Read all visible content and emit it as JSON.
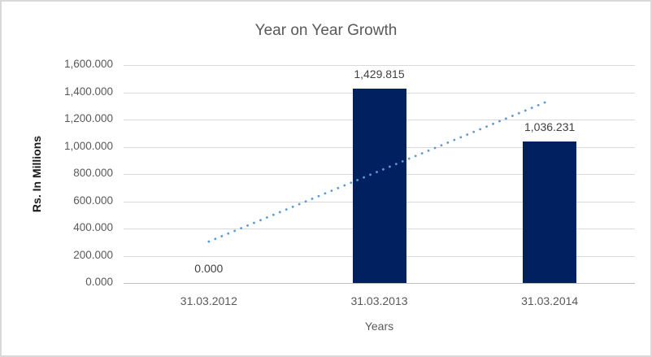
{
  "chart_data": {
    "type": "bar",
    "title": "Year on Year Growth",
    "xlabel": "Years",
    "ylabel": "Rs. In Millions",
    "categories": [
      "31.03.2012",
      "31.03.2013",
      "31.03.2014"
    ],
    "values": [
      0.0,
      1429.815,
      1036.231
    ],
    "data_labels": [
      "0.000",
      "1,429.815",
      "1,036.231"
    ],
    "y_tick_values": [
      0,
      200,
      400,
      600,
      800,
      1000,
      1200,
      1400,
      1600
    ],
    "y_ticks": [
      "0.000",
      "200.000",
      "400.000",
      "600.000",
      "800.000",
      "1,000.000",
      "1,200.000",
      "1,400.000",
      "1,600.000"
    ],
    "ylim": [
      0,
      1600
    ],
    "grid": true,
    "legend": "none",
    "bar_color": "#002060",
    "colors": {
      "gridline": "#d9d9d9",
      "axis_line": "#bfbfbf",
      "title_text": "#595959",
      "tick_text": "#595959",
      "data_label_text": "#404040"
    },
    "trendline": {
      "type": "linear",
      "style": "dotted",
      "color": "#5b9bd5",
      "start_value": 304,
      "end_value": 1340
    }
  }
}
